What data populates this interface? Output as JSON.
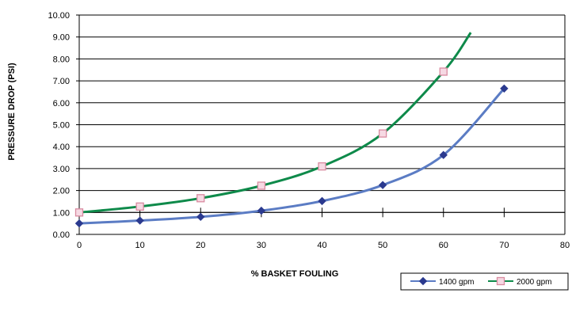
{
  "chart_data": {
    "type": "line",
    "title": "",
    "xlabel": "% BASKET FOULING",
    "ylabel": "PRESSURE DROP (PSI)",
    "xlim": [
      0,
      80
    ],
    "ylim": [
      0,
      10
    ],
    "x_ticks": [
      0,
      10,
      20,
      30,
      40,
      50,
      60,
      70,
      80
    ],
    "y_ticks": [
      "0.00",
      "1.00",
      "2.00",
      "3.00",
      "4.00",
      "5.00",
      "6.00",
      "7.00",
      "8.00",
      "9.00",
      "10.00"
    ],
    "grid": "horizontal",
    "legend_position": "bottom-right",
    "series": [
      {
        "name": "1400 gpm",
        "color": "#2b3a8f",
        "line_color": "#5b7cc4",
        "marker": "diamond",
        "x": [
          0,
          10,
          20,
          30,
          40,
          50,
          60,
          70
        ],
        "y": [
          0.5,
          0.63,
          0.8,
          1.08,
          1.52,
          2.25,
          3.62,
          6.65
        ]
      },
      {
        "name": "2000 gpm",
        "color": "#d98aa0",
        "line_color": "#0e8a4a",
        "marker": "square",
        "x": [
          0,
          10,
          20,
          30,
          40,
          50,
          60
        ],
        "y": [
          1.0,
          1.27,
          1.65,
          2.22,
          3.1,
          4.6,
          7.42
        ]
      }
    ]
  }
}
